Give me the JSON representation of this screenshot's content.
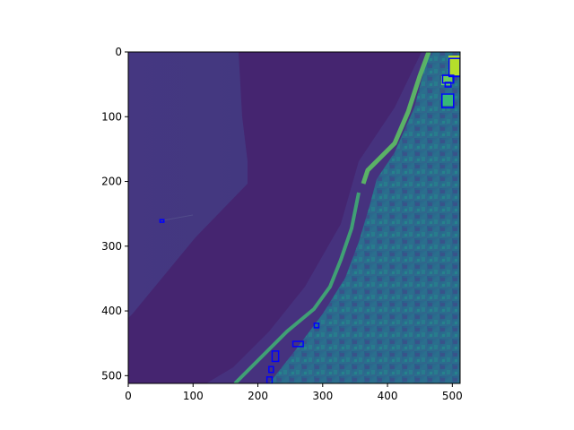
{
  "chart_data": {
    "type": "image",
    "colormap": "viridis",
    "xlim": [
      0,
      512
    ],
    "ylim": [
      512,
      0
    ],
    "x_ticks": [
      "0",
      "100",
      "200",
      "300",
      "400",
      "500"
    ],
    "y_ticks": [
      "0",
      "100",
      "200",
      "300",
      "400",
      "500"
    ],
    "grid": false,
    "box_color": "#0000ff",
    "boxes": [
      {
        "x0": 495,
        "y0": 10,
        "x1": 512,
        "y1": 38
      },
      {
        "x0": 485,
        "y0": 36,
        "x1": 502,
        "y1": 48
      },
      {
        "x0": 489,
        "y0": 47,
        "x1": 498,
        "y1": 54
      },
      {
        "x0": 484,
        "y0": 65,
        "x1": 502,
        "y1": 86
      },
      {
        "x0": 49,
        "y0": 259,
        "x1": 55,
        "y1": 263
      },
      {
        "x0": 287,
        "y0": 419,
        "x1": 294,
        "y1": 426
      },
      {
        "x0": 254,
        "y0": 447,
        "x1": 270,
        "y1": 455
      },
      {
        "x0": 222,
        "y0": 462,
        "x1": 232,
        "y1": 478
      },
      {
        "x0": 217,
        "y0": 486,
        "x1": 224,
        "y1": 495
      },
      {
        "x0": 214,
        "y0": 502,
        "x1": 222,
        "y1": 512
      }
    ]
  }
}
